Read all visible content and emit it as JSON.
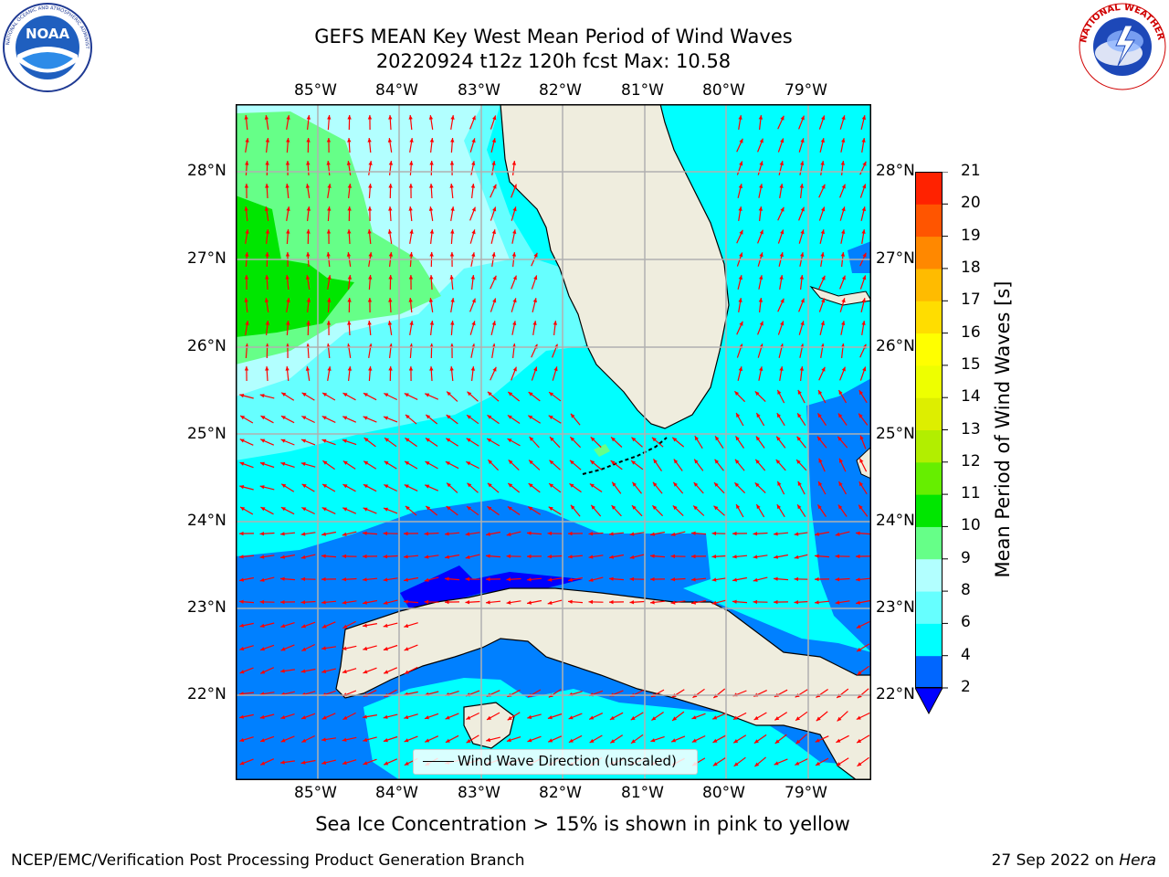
{
  "title": {
    "line1": "GEFS MEAN Key West Mean Period of Wind Waves",
    "line2": "20220924 t12z 120h fcst   Max: 10.58"
  },
  "logos": {
    "left": "NOAA",
    "left_ring": "NATIONAL OCEANIC AND ATMOSPHERIC ADMINISTRATION · U.S. DEPARTMENT OF COMMERCE",
    "right_ring": "NATIONAL WEATHER SERVICE"
  },
  "map": {
    "lon_labels": [
      "85°W",
      "84°W",
      "83°W",
      "82°W",
      "81°W",
      "80°W",
      "79°W"
    ],
    "lat_labels": [
      "28°N",
      "27°N",
      "26°N",
      "25°N",
      "24°N",
      "23°N",
      "22°N"
    ],
    "legend_label": "Wind Wave Direction (unscaled)",
    "arrow_color": "#ff0000",
    "land_color": "#efedde"
  },
  "colorbar": {
    "label": "Mean Period of Wind Waves [s]",
    "ticks": [
      "2",
      "4",
      "6",
      "8",
      "9",
      "10",
      "11",
      "12",
      "13",
      "14",
      "15",
      "16",
      "17",
      "18",
      "19",
      "20",
      "21"
    ],
    "colors": [
      "#0066ff",
      "#00ffff",
      "#66ffff",
      "#b2ffff",
      "#66ff88",
      "#00e600",
      "#66ee00",
      "#b2ee00",
      "#ddee00",
      "#eeff00",
      "#ffff00",
      "#ffdd00",
      "#ffbb00",
      "#ff8800",
      "#ff5500",
      "#ff2200"
    ],
    "extend_color": "#0000ff"
  },
  "note": "Sea Ice Concentration > 15% is shown in pink to yellow",
  "footer": {
    "left": "NCEP/EMC/Verification Post Processing Product Generation Branch",
    "right_date": "27 Sep 2022 on ",
    "right_host": "Hera"
  }
}
